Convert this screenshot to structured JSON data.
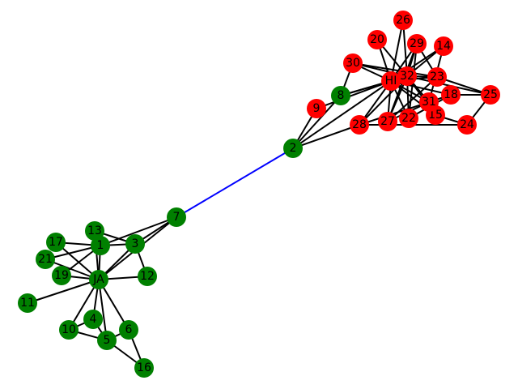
{
  "graph": {
    "colors": {
      "group_a": "#008000",
      "group_b": "#ff0000",
      "edge": "#000000",
      "highlight_edge": "#0000ff"
    },
    "nodes": [
      {
        "id": "JA",
        "label": "JA",
        "group": "a"
      },
      {
        "id": "1",
        "label": "1",
        "group": "a"
      },
      {
        "id": "2",
        "label": "2",
        "group": "a"
      },
      {
        "id": "3",
        "label": "3",
        "group": "a"
      },
      {
        "id": "4",
        "label": "4",
        "group": "a"
      },
      {
        "id": "5",
        "label": "5",
        "group": "a"
      },
      {
        "id": "6",
        "label": "6",
        "group": "a"
      },
      {
        "id": "7",
        "label": "7",
        "group": "a"
      },
      {
        "id": "8",
        "label": "8",
        "group": "a"
      },
      {
        "id": "9",
        "label": "9",
        "group": "b"
      },
      {
        "id": "10",
        "label": "10",
        "group": "a"
      },
      {
        "id": "11",
        "label": "11",
        "group": "a"
      },
      {
        "id": "12",
        "label": "12",
        "group": "a"
      },
      {
        "id": "13",
        "label": "13",
        "group": "a"
      },
      {
        "id": "14",
        "label": "14",
        "group": "b"
      },
      {
        "id": "15",
        "label": "15",
        "group": "b"
      },
      {
        "id": "16",
        "label": "16",
        "group": "a"
      },
      {
        "id": "17",
        "label": "17",
        "group": "a"
      },
      {
        "id": "18",
        "label": "18",
        "group": "b"
      },
      {
        "id": "19",
        "label": "19",
        "group": "a"
      },
      {
        "id": "20",
        "label": "20",
        "group": "b"
      },
      {
        "id": "21",
        "label": "21",
        "group": "a"
      },
      {
        "id": "22",
        "label": "22",
        "group": "b"
      },
      {
        "id": "23",
        "label": "23",
        "group": "b"
      },
      {
        "id": "24",
        "label": "24",
        "group": "b"
      },
      {
        "id": "25",
        "label": "25",
        "group": "b"
      },
      {
        "id": "26",
        "label": "26",
        "group": "b"
      },
      {
        "id": "27",
        "label": "27",
        "group": "b"
      },
      {
        "id": "28",
        "label": "28",
        "group": "b"
      },
      {
        "id": "29",
        "label": "29",
        "group": "b"
      },
      {
        "id": "30",
        "label": "30",
        "group": "b"
      },
      {
        "id": "31",
        "label": "31",
        "group": "b"
      },
      {
        "id": "32",
        "label": "32",
        "group": "b"
      },
      {
        "id": "HI",
        "label": "HI",
        "group": "b"
      }
    ],
    "edges": [
      [
        "2",
        "7",
        "highlight"
      ],
      [
        "JA",
        "1"
      ],
      [
        "JA",
        "3"
      ],
      [
        "JA",
        "4"
      ],
      [
        "JA",
        "5"
      ],
      [
        "JA",
        "6"
      ],
      [
        "JA",
        "7"
      ],
      [
        "JA",
        "10"
      ],
      [
        "JA",
        "11"
      ],
      [
        "JA",
        "12"
      ],
      [
        "JA",
        "13"
      ],
      [
        "JA",
        "17"
      ],
      [
        "JA",
        "19"
      ],
      [
        "JA",
        "21"
      ],
      [
        "1",
        "3"
      ],
      [
        "1",
        "7"
      ],
      [
        "1",
        "13"
      ],
      [
        "1",
        "17"
      ],
      [
        "1",
        "19"
      ],
      [
        "1",
        "21"
      ],
      [
        "3",
        "7"
      ],
      [
        "3",
        "12"
      ],
      [
        "3",
        "13"
      ],
      [
        "4",
        "10"
      ],
      [
        "4",
        "5"
      ],
      [
        "5",
        "6"
      ],
      [
        "5",
        "10"
      ],
      [
        "5",
        "16"
      ],
      [
        "6",
        "16"
      ],
      [
        "2",
        "8"
      ],
      [
        "2",
        "9"
      ],
      [
        "2",
        "28"
      ],
      [
        "2",
        "HI"
      ],
      [
        "8",
        "30"
      ],
      [
        "8",
        "HI"
      ],
      [
        "8",
        "32"
      ],
      [
        "9",
        "HI"
      ],
      [
        "HI",
        "14"
      ],
      [
        "HI",
        "15"
      ],
      [
        "HI",
        "18"
      ],
      [
        "HI",
        "20"
      ],
      [
        "HI",
        "22"
      ],
      [
        "HI",
        "23"
      ],
      [
        "HI",
        "26"
      ],
      [
        "HI",
        "27"
      ],
      [
        "HI",
        "28"
      ],
      [
        "HI",
        "29"
      ],
      [
        "HI",
        "30"
      ],
      [
        "HI",
        "31"
      ],
      [
        "HI",
        "32"
      ],
      [
        "32",
        "26"
      ],
      [
        "32",
        "29"
      ],
      [
        "32",
        "14"
      ],
      [
        "32",
        "23"
      ],
      [
        "32",
        "25"
      ],
      [
        "32",
        "31"
      ],
      [
        "32",
        "20"
      ],
      [
        "32",
        "27"
      ],
      [
        "32",
        "30"
      ],
      [
        "32",
        "15"
      ],
      [
        "32",
        "22"
      ],
      [
        "32",
        "28"
      ],
      [
        "23",
        "25"
      ],
      [
        "23",
        "27"
      ],
      [
        "23",
        "29"
      ],
      [
        "23",
        "30"
      ],
      [
        "25",
        "18"
      ],
      [
        "25",
        "24"
      ],
      [
        "24",
        "28"
      ],
      [
        "24",
        "15"
      ],
      [
        "27",
        "29"
      ],
      [
        "27",
        "31"
      ],
      [
        "22",
        "29"
      ],
      [
        "28",
        "31"
      ],
      [
        "14",
        "31"
      ],
      [
        "18",
        "31"
      ],
      [
        "15",
        "31"
      ],
      [
        "22",
        "18"
      ]
    ]
  }
}
